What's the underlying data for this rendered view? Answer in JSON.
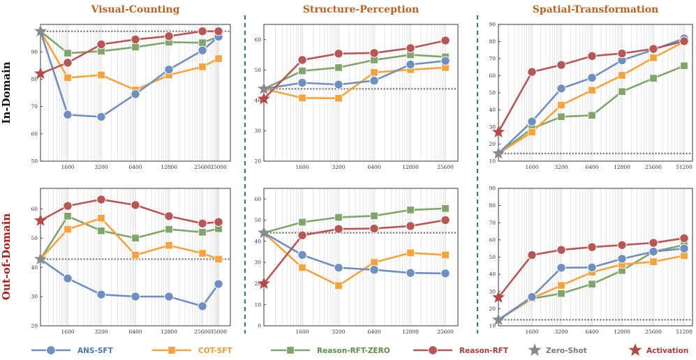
{
  "row_labels": [
    "In-Domain",
    "Out-of-Domain"
  ],
  "row_label_color": "#b01c1c",
  "title_color": "#c0601c",
  "divider_color": "#2f7f72",
  "legend": [
    {
      "key": "ans",
      "label": "ANS-SFT",
      "color": "#6f8fc0",
      "marker": "circle",
      "line": true,
      "text_color": "#4a74b8"
    },
    {
      "key": "cot",
      "label": "COT-SFT",
      "color": "#f7a23a",
      "marker": "square",
      "line": true,
      "text_color": "#f09a30"
    },
    {
      "key": "zero",
      "label": "Reason-RFT-ZERO",
      "color": "#7fa56a",
      "marker": "square",
      "line": true,
      "text_color": "#5f8f4f"
    },
    {
      "key": "rft",
      "label": "Reason-RFT",
      "color": "#b85555",
      "marker": "circle",
      "line": true,
      "text_color": "#b03c3c"
    },
    {
      "key": "zs",
      "label": "Zero-Shot",
      "color": "#8a8a8a",
      "marker": "star",
      "line": false,
      "text_color": "#7a7a7a"
    },
    {
      "key": "act",
      "label": "Activation",
      "color": "#b84848",
      "marker": "star",
      "line": false,
      "text_color": "#b03c3c"
    }
  ],
  "chart_data": [
    {
      "type": "line",
      "title": "Visual-Counting",
      "row": "In-Domain",
      "x_tick_labels": [
        "1600",
        "3200",
        "6400",
        "12800",
        "25600",
        "35000"
      ],
      "x": [
        1600,
        3200,
        6400,
        12800,
        25600,
        35000
      ],
      "ylim": [
        50,
        100
      ],
      "yticks": [
        50,
        60,
        70,
        80,
        90
      ],
      "zero_shot": 97.5,
      "activation": 82,
      "series": [
        {
          "name": "ANS-SFT",
          "values": [
            67,
            66.2,
            74.5,
            83.5,
            90.5,
            95.5
          ]
        },
        {
          "name": "COT-SFT",
          "values": [
            80.5,
            81.5,
            76,
            81.5,
            84.5,
            87.5
          ]
        },
        {
          "name": "Reason-RFT-ZERO",
          "values": [
            89.5,
            90.2,
            91.7,
            93.5,
            93.3,
            95.5
          ]
        },
        {
          "name": "Reason-RFT",
          "values": [
            86,
            92.7,
            94.5,
            95.7,
            97.5,
            97.5
          ]
        }
      ]
    },
    {
      "type": "line",
      "title": "Structure-Perception",
      "row": "In-Domain",
      "x_tick_labels": [
        "1600",
        "3200",
        "6400",
        "12800",
        "25600"
      ],
      "x": [
        1600,
        3200,
        6400,
        12800,
        25600
      ],
      "ylim": [
        20,
        65
      ],
      "yticks": [
        20,
        30,
        40,
        50,
        60
      ],
      "zero_shot": 43.8,
      "activation": 40.5,
      "series": [
        {
          "name": "ANS-SFT",
          "values": [
            45.8,
            45.2,
            46.5,
            51.8,
            53
          ]
        },
        {
          "name": "COT-SFT",
          "values": [
            40.8,
            40.7,
            49.2,
            50.1,
            50.8
          ]
        },
        {
          "name": "Reason-RFT-ZERO",
          "values": [
            49.7,
            50.8,
            53.3,
            55,
            54.3
          ]
        },
        {
          "name": "Reason-RFT",
          "values": [
            53.3,
            55.4,
            55.6,
            57.2,
            59.7
          ]
        }
      ]
    },
    {
      "type": "line",
      "title": "Spatial-Transformation",
      "row": "In-Domain",
      "x_tick_labels": [
        "1600",
        "3200",
        "6400",
        "12800",
        "25600",
        "51200"
      ],
      "x": [
        1600,
        3200,
        6400,
        12800,
        25600,
        51200
      ],
      "ylim": [
        10,
        90
      ],
      "yticks": [
        10,
        20,
        30,
        40,
        50,
        60,
        70,
        80,
        90
      ],
      "zero_shot": 14.5,
      "activation": 27,
      "series": [
        {
          "name": "ANS-SFT",
          "values": [
            33.2,
            52.5,
            58.8,
            69,
            75.2,
            81.8
          ]
        },
        {
          "name": "COT-SFT",
          "values": [
            27,
            42.8,
            51.5,
            60.2,
            70.5,
            79.8
          ]
        },
        {
          "name": "Reason-RFT-ZERO",
          "values": [
            29,
            36,
            36.8,
            50.7,
            58.5,
            65.8
          ]
        },
        {
          "name": "Reason-RFT",
          "values": [
            62.2,
            66.3,
            71.5,
            73,
            75.7,
            80.2
          ]
        }
      ]
    },
    {
      "type": "line",
      "title": "",
      "row": "Out-of-Domain",
      "x_tick_labels": [
        "1600",
        "3200",
        "6400",
        "12800",
        "25600",
        "35000"
      ],
      "x": [
        1600,
        3200,
        6400,
        12800,
        25600,
        35000
      ],
      "ylim": [
        20,
        67
      ],
      "yticks": [
        20,
        30,
        40,
        50,
        60
      ],
      "zero_shot": 42.8,
      "activation": 56,
      "series": [
        {
          "name": "ANS-SFT",
          "values": [
            36.2,
            30.7,
            30,
            30,
            26.7,
            34.3
          ]
        },
        {
          "name": "COT-SFT",
          "values": [
            53,
            56.8,
            44.2,
            47.5,
            44.8,
            42.8
          ]
        },
        {
          "name": "Reason-RFT-ZERO",
          "values": [
            57.5,
            52.5,
            50,
            53,
            52,
            53.2
          ]
        },
        {
          "name": "Reason-RFT",
          "values": [
            61,
            63.2,
            61.3,
            57.5,
            55,
            55.5
          ]
        }
      ]
    },
    {
      "type": "line",
      "title": "",
      "row": "Out-of-Domain",
      "x_tick_labels": [
        "1600",
        "3200",
        "6400",
        "12800",
        "25600"
      ],
      "x": [
        1600,
        3200,
        6400,
        12800,
        25600
      ],
      "ylim": [
        0,
        65
      ],
      "yticks": [
        0,
        10,
        20,
        30,
        40,
        50,
        60
      ],
      "zero_shot": 44,
      "activation": 20,
      "series": [
        {
          "name": "ANS-SFT",
          "values": [
            33.5,
            27.5,
            26.5,
            25,
            24.8
          ]
        },
        {
          "name": "COT-SFT",
          "values": [
            27.5,
            19,
            30,
            34.5,
            33.5
          ]
        },
        {
          "name": "Reason-RFT-ZERO",
          "values": [
            49,
            51.3,
            52,
            54.8,
            55.5
          ]
        },
        {
          "name": "Reason-RFT",
          "values": [
            42.8,
            45.8,
            46,
            47.2,
            50
          ]
        }
      ]
    },
    {
      "type": "line",
      "title": "",
      "row": "Out-of-Domain",
      "x_tick_labels": [
        "1600",
        "3200",
        "6400",
        "12800",
        "25600",
        "51200"
      ],
      "x": [
        1600,
        3200,
        6400,
        12800,
        25600,
        51200
      ],
      "ylim": [
        10,
        90
      ],
      "yticks": [
        10,
        20,
        30,
        40,
        50,
        60,
        70,
        80,
        90
      ],
      "zero_shot": 13.5,
      "activation": 26.5,
      "series": [
        {
          "name": "ANS-SFT",
          "values": [
            26.8,
            43.8,
            44,
            49,
            53.2,
            55
          ]
        },
        {
          "name": "COT-SFT",
          "values": [
            26,
            33.5,
            41.2,
            45.7,
            47.3,
            50.8
          ]
        },
        {
          "name": "Reason-RFT-ZERO",
          "values": [
            25.8,
            28.8,
            34.3,
            42.2,
            53.2,
            57
          ]
        },
        {
          "name": "Reason-RFT",
          "values": [
            51.2,
            54.2,
            55.8,
            57,
            58.3,
            61
          ]
        }
      ]
    }
  ]
}
